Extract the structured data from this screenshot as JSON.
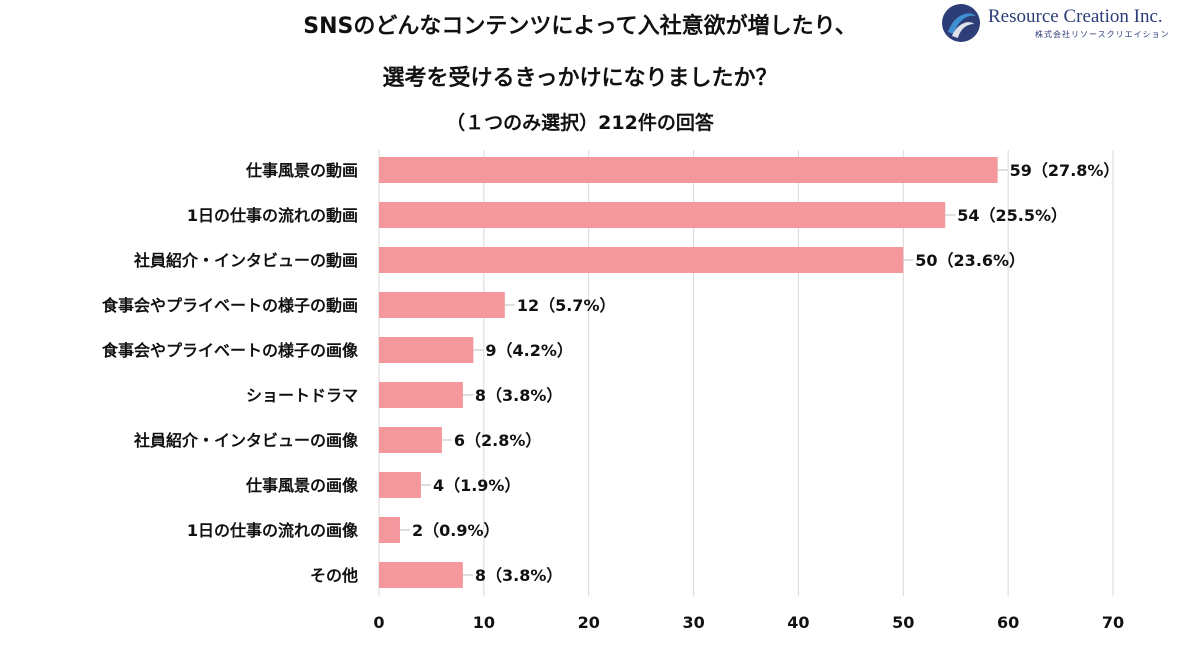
{
  "header": {
    "title_line1": "SNSのどんなコンテンツによって入社意欲が増したり、",
    "title_line2": "選考を受けるきっかけになりましたか？",
    "subtitle": "（１つのみ選択）212件の回答"
  },
  "logo": {
    "name": "Resource Creation Inc.",
    "sub": "株式会社リソースクリエイション",
    "colors": {
      "primary": "#2c3d78",
      "accent": "#3f8fd2"
    }
  },
  "chart_data": {
    "type": "bar",
    "orientation": "horizontal",
    "categories": [
      "仕事風景の動画",
      "1日の仕事の流れの動画",
      "社員紹介・インタビューの動画",
      "食事会やプライベートの様子の動画",
      "食事会やプライベートの様子の画像",
      "ショートドラマ",
      "社員紹介・インタビューの画像",
      "仕事風景の画像",
      "1日の仕事の流れの画像",
      "その他"
    ],
    "values": [
      59,
      54,
      50,
      12,
      9,
      8,
      6,
      4,
      2,
      8
    ],
    "value_labels": [
      "59（27.8%）",
      "54（25.5%）",
      "50（23.6%）",
      "12（5.7%）",
      "9（4.2%）",
      "8（3.8%）",
      "6（2.8%）",
      "4（1.9%）",
      "2（0.9%）",
      "8（3.8%）"
    ],
    "xlim": [
      0,
      70
    ],
    "xticks": [
      0,
      10,
      20,
      30,
      40,
      50,
      60,
      70
    ],
    "grid": true,
    "bar_color": "#f5989d",
    "grid_color": "#d9d9d9"
  }
}
